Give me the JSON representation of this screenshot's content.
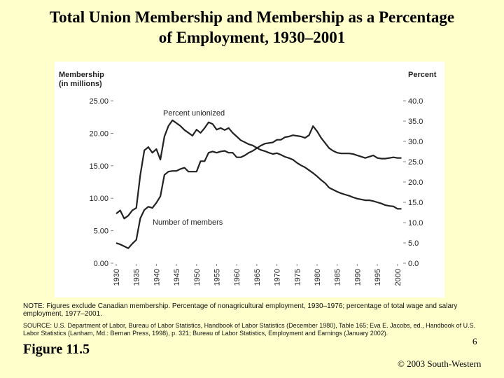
{
  "chart_data": {
    "type": "line",
    "title": [
      "Total Union Membership and Membership as a Percentage",
      "of Employment, 1930–2001"
    ],
    "ylabel": [
      "Membership",
      "(in millions)"
    ],
    "y2label": "Percent",
    "x": [
      1930,
      1931,
      1932,
      1933,
      1934,
      1935,
      1936,
      1937,
      1938,
      1939,
      1940,
      1941,
      1942,
      1943,
      1944,
      1945,
      1946,
      1947,
      1948,
      1949,
      1950,
      1951,
      1952,
      1953,
      1954,
      1955,
      1956,
      1957,
      1958,
      1959,
      1960,
      1961,
      1962,
      1963,
      1964,
      1965,
      1966,
      1967,
      1968,
      1969,
      1970,
      1971,
      1972,
      1973,
      1974,
      1975,
      1976,
      1977,
      1978,
      1979,
      1980,
      1981,
      1982,
      1983,
      1984,
      1985,
      1986,
      1987,
      1988,
      1989,
      1990,
      1991,
      1992,
      1993,
      1994,
      1995,
      1996,
      1997,
      1998,
      1999,
      2000,
      2001
    ],
    "xlim": [
      1930,
      2001
    ],
    "xticks": [
      1930,
      1935,
      1940,
      1945,
      1950,
      1955,
      1960,
      1965,
      1970,
      1975,
      1980,
      1985,
      1990,
      1995,
      2000
    ],
    "ylim": [
      0,
      25
    ],
    "yticks": [
      {
        "value": 0,
        "label": "0.00"
      },
      {
        "value": 5,
        "label": "5.00"
      },
      {
        "value": 10,
        "label": "10.00"
      },
      {
        "value": 15,
        "label": "15.00"
      },
      {
        "value": 20,
        "label": "20.00"
      },
      {
        "value": 25,
        "label": "25.00"
      }
    ],
    "y2lim": [
      0,
      40
    ],
    "y2ticks": [
      {
        "value": 0,
        "label": "0.0"
      },
      {
        "value": 5,
        "label": "5.0"
      },
      {
        "value": 10,
        "label": "10.0"
      },
      {
        "value": 15,
        "label": "15.0"
      },
      {
        "value": 20,
        "label": "20.0"
      },
      {
        "value": 25,
        "label": "25.0"
      },
      {
        "value": 30,
        "label": "30.0"
      },
      {
        "value": 35,
        "label": "35.0"
      },
      {
        "value": 40,
        "label": "40.0"
      }
    ],
    "series": [
      {
        "name": "Number of members",
        "color": "#222222",
        "values": [
          3.1,
          2.9,
          2.6,
          2.3,
          3.0,
          3.6,
          6.9,
          8.2,
          8.7,
          8.5,
          9.3,
          10.3,
          13.6,
          14.1,
          14.2,
          14.2,
          14.5,
          14.7,
          14.1,
          14.1,
          14.1,
          15.7,
          15.7,
          17.0,
          17.2,
          17.0,
          17.2,
          17.3,
          17.0,
          17.0,
          16.3,
          16.3,
          16.6,
          17.0,
          17.3,
          17.7,
          18.1,
          18.4,
          18.5,
          18.6,
          19.0,
          19.0,
          19.4,
          19.5,
          19.7,
          19.6,
          19.5,
          19.3,
          19.7,
          21.1,
          20.3,
          19.3,
          18.5,
          17.7,
          17.3,
          17.0,
          16.9,
          16.9,
          16.9,
          16.8,
          16.6,
          16.4,
          16.2,
          16.4,
          16.6,
          16.2,
          16.1,
          16.1,
          16.2,
          16.3,
          16.2,
          16.2
        ]
      },
      {
        "name": "Percent unionized",
        "color": "#222222",
        "axis": "y2",
        "values": [
          12.2,
          13.0,
          11.0,
          11.7,
          13.0,
          13.6,
          21.7,
          27.8,
          28.6,
          27.2,
          28.1,
          25.5,
          31.2,
          33.8,
          35.2,
          34.5,
          33.8,
          32.8,
          32.1,
          31.4,
          32.9,
          32.1,
          33.3,
          34.7,
          34.3,
          32.9,
          33.3,
          32.8,
          33.3,
          32.1,
          31.2,
          30.3,
          29.8,
          29.3,
          29.0,
          28.4,
          27.9,
          27.6,
          27.2,
          26.9,
          27.1,
          26.7,
          26.2,
          25.9,
          25.5,
          24.7,
          24.1,
          23.6,
          22.9,
          22.2,
          21.4,
          20.5,
          19.7,
          18.6,
          18.1,
          17.6,
          17.2,
          16.9,
          16.6,
          16.2,
          15.9,
          15.7,
          15.5,
          15.5,
          15.3,
          15.0,
          14.7,
          14.3,
          14.1,
          14.0,
          13.4,
          13.4
        ]
      }
    ],
    "note": "NOTE: Figures exclude Canadian membership. Percentage of nonagricultural employment, 1930–1976; percentage of total wage and salary employment, 1977–2001.",
    "source": "SOURCE: U.S. Department of Labor, Bureau of Labor Statistics, Handbook of Labor Statistics (December 1980), Table 165; Eva E. Jacobs, ed., Handbook of U.S. Labor Statistics (Lanham, Md.: Bernan Press, 1998), p. 321; Bureau of Labor Statistics, Employment and Earnings (January 2002).",
    "figure_label": "Figure 11.5",
    "page_number": "6",
    "copyright": "© 2003 South-Western"
  }
}
